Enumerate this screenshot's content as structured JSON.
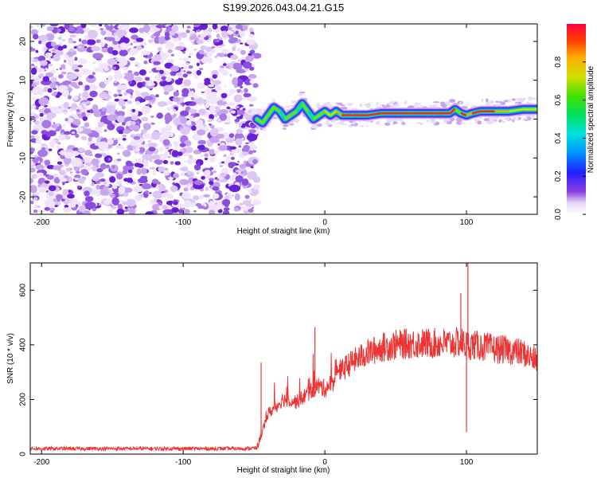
{
  "chart_data": [
    {
      "type": "heatmap",
      "title": "S199.2026.043.04.21.G15",
      "xlabel": "Height of straight line (km)",
      "ylabel": "Frequency (Hz)",
      "xlim": [
        -208,
        150
      ],
      "ylim": [
        -24.5,
        24.5
      ],
      "xticks": [
        -200,
        -100,
        0,
        100
      ],
      "yticks": [
        -20,
        -10,
        0,
        10,
        20
      ],
      "noise_region_x": [
        -208,
        -48
      ],
      "signal_track": {
        "x": [
          -48,
          -44,
          -40,
          -36,
          -32,
          -28,
          -24,
          -20,
          -16,
          -12,
          -8,
          -4,
          0,
          4,
          8,
          12,
          20,
          30,
          40,
          60,
          80,
          88,
          92,
          96,
          100,
          104,
          110,
          120,
          130,
          140,
          150
        ],
        "freq": [
          0,
          -1,
          1,
          3,
          2,
          0,
          1,
          2,
          4,
          2,
          0,
          1,
          2,
          1,
          2,
          1,
          1,
          1,
          1.5,
          1.5,
          1.5,
          1.5,
          2.5,
          1.5,
          1,
          1.5,
          2,
          2,
          2,
          2.5,
          2.5
        ],
        "amplitude": [
          0.45,
          0.5,
          0.55,
          0.5,
          0.6,
          0.65,
          0.55,
          0.6,
          0.55,
          0.6,
          0.65,
          0.7,
          0.75,
          0.8,
          0.85,
          0.9,
          0.95,
          0.95,
          0.9,
          0.9,
          0.95,
          0.9,
          0.7,
          0.9,
          0.85,
          0.9,
          0.9,
          0.85,
          0.8,
          0.75,
          0.7
        ]
      }
    },
    {
      "type": "line",
      "title": "",
      "xlabel": "Height of straight line (km)",
      "ylabel": "SNR (10 * v/v)",
      "xlim": [
        -208,
        150
      ],
      "ylim": [
        0,
        700
      ],
      "xticks": [
        -200,
        -100,
        0,
        100
      ],
      "yticks": [
        0,
        200,
        400,
        600
      ],
      "series": [
        {
          "name": "SNR",
          "color": "#ee3333",
          "x": [
            -208,
            -150,
            -100,
            -60,
            -48,
            -40,
            -35,
            -30,
            -25,
            -20,
            -15,
            -10,
            -5,
            0,
            5,
            10,
            15,
            20,
            30,
            40,
            50,
            60,
            70,
            80,
            90,
            96,
            100,
            104,
            110,
            120,
            130,
            140,
            150
          ],
          "y": [
            20,
            20,
            20,
            20,
            22,
            150,
            170,
            200,
            200,
            190,
            210,
            230,
            250,
            240,
            260,
            300,
            320,
            340,
            370,
            390,
            400,
            405,
            405,
            405,
            405,
            410,
            400,
            400,
            395,
            385,
            380,
            370,
            340
          ],
          "spikes": [
            {
              "x": -45,
              "y": 335
            },
            {
              "x": -7,
              "y": 465
            },
            {
              "x": 96,
              "y": 590
            },
            {
              "x": 100,
              "y": 80
            },
            {
              "x": 101,
              "y": 700
            }
          ]
        }
      ]
    }
  ],
  "colorbar": {
    "label": "Normalized spectral amplitude",
    "ticks": [
      "0.0",
      "0.2",
      "0.4",
      "0.6",
      "0.8"
    ],
    "range": [
      0,
      1
    ]
  }
}
